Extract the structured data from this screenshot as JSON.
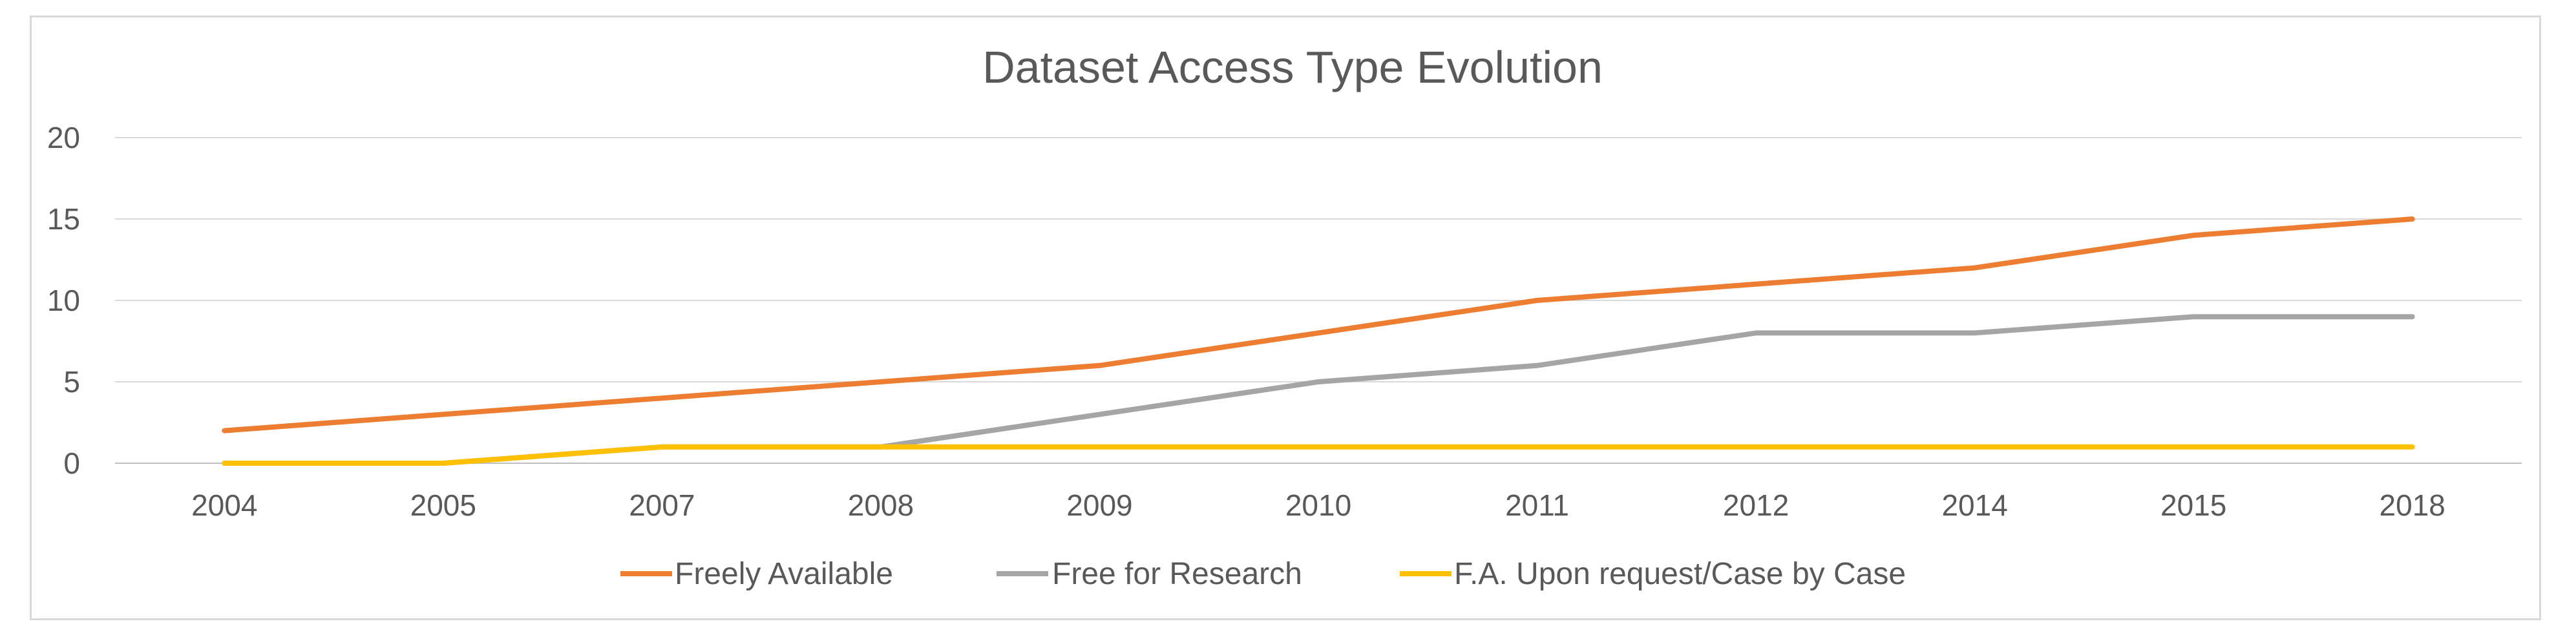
{
  "chart_data": {
    "type": "line",
    "title": "Dataset Access Type Evolution",
    "xlabel": "",
    "ylabel": "",
    "categories": [
      "2004",
      "2005",
      "2007",
      "2008",
      "2009",
      "2010",
      "2011",
      "2012",
      "2014",
      "2015",
      "2018"
    ],
    "y_ticks": [
      "0",
      "5",
      "10",
      "15",
      "20"
    ],
    "ylim": [
      0,
      20
    ],
    "grid": true,
    "legend_position": "bottom",
    "series": [
      {
        "name": "Freely Available",
        "color": "#ed7d31",
        "values": [
          2,
          3,
          4,
          5,
          6,
          8,
          10,
          11,
          12,
          14,
          15
        ]
      },
      {
        "name": "Free for Research",
        "color": "#a5a5a5",
        "values": [
          0,
          0,
          1,
          1,
          3,
          5,
          6,
          8,
          8,
          9,
          9
        ]
      },
      {
        "name": "F.A. Upon request/Case by Case",
        "color": "#ffc000",
        "values": [
          0,
          0,
          1,
          1,
          1,
          1,
          1,
          1,
          1,
          1,
          1
        ]
      }
    ]
  }
}
